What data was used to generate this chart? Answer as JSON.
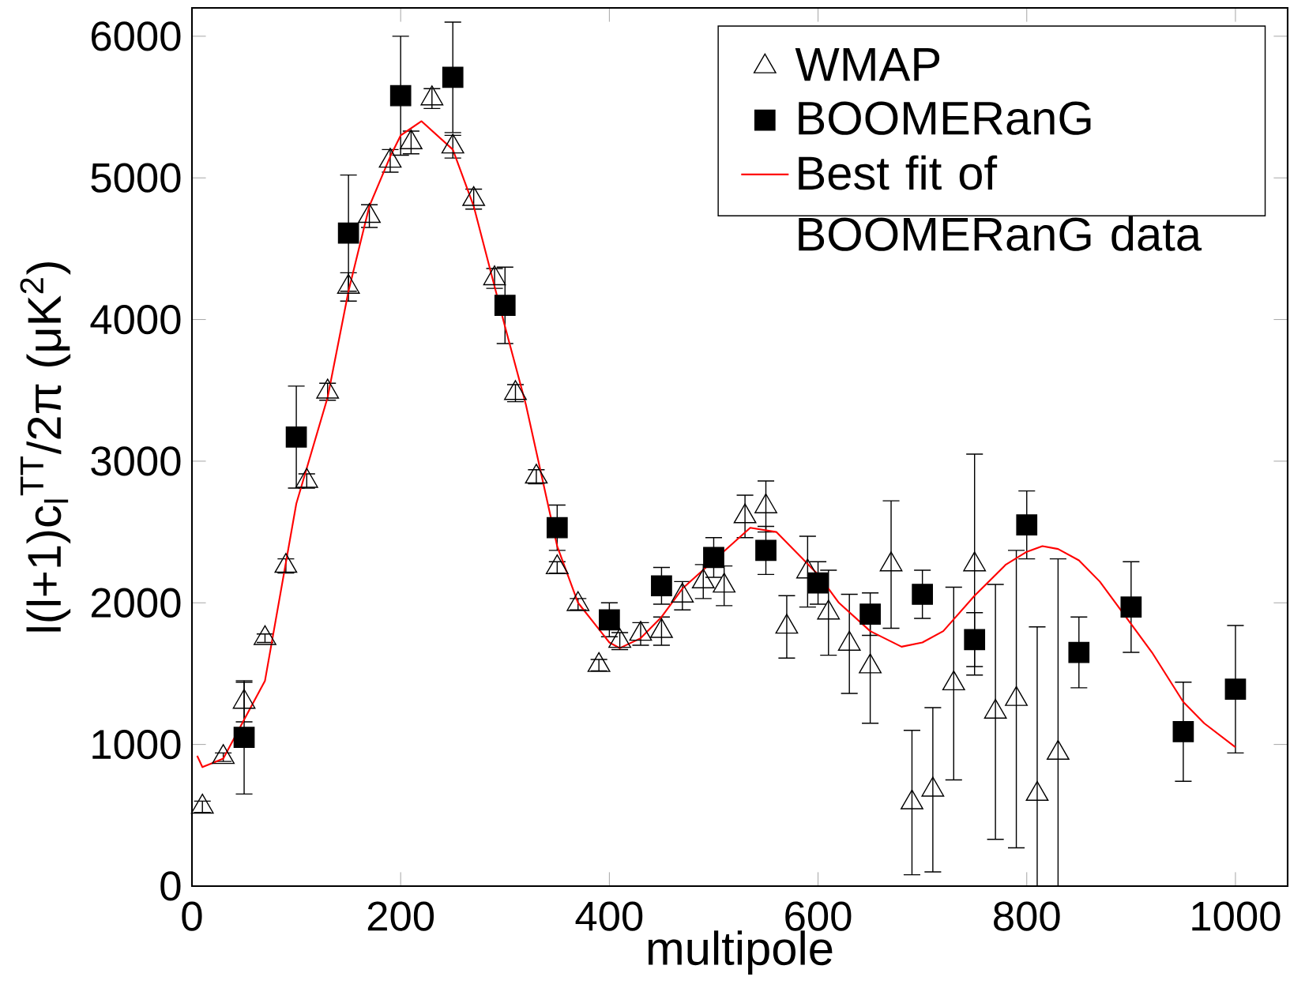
{
  "chart_data": {
    "type": "scatter",
    "xlabel": "multipole",
    "ylabel": "l(l+1)c$_{l}$$^{TT}$/2π (μK$^{2}$)",
    "xlim": [
      0,
      1050
    ],
    "ylim": [
      0,
      6200
    ],
    "xticks": [
      0,
      200,
      400,
      600,
      800,
      1000
    ],
    "yticks": [
      0,
      1000,
      2000,
      3000,
      4000,
      5000,
      6000
    ],
    "legend": "top right",
    "grid": false,
    "series": [
      {
        "name": "WMAP",
        "marker": "triangle",
        "color": "#000000",
        "x": [
          10,
          30,
          50,
          70,
          90,
          110,
          130,
          150,
          170,
          190,
          210,
          230,
          250,
          270,
          290,
          310,
          330,
          350,
          370,
          390,
          410,
          430,
          450,
          470,
          490,
          510,
          530,
          550,
          570,
          590,
          610,
          630,
          650,
          670,
          690,
          710,
          730,
          750,
          770,
          790,
          810,
          830
        ],
        "values": [
          560,
          910,
          1300,
          1750,
          2260,
          2860,
          3490,
          4230,
          4730,
          5120,
          5250,
          5560,
          5220,
          4850,
          4290,
          3480,
          2890,
          2250,
          1990,
          1560,
          1730,
          1780,
          1800,
          2050,
          2150,
          2120,
          2610,
          2680,
          1830,
          2220,
          1930,
          1710,
          1550,
          2270,
          590,
          680,
          1430,
          2270,
          1230,
          1320,
          650,
          940
        ],
        "errors": [
          40,
          30,
          140,
          30,
          50,
          50,
          60,
          100,
          80,
          80,
          80,
          70,
          80,
          70,
          70,
          60,
          50,
          40,
          40,
          40,
          60,
          80,
          100,
          100,
          120,
          140,
          150,
          180,
          220,
          250,
          300,
          350,
          400,
          450,
          510,
          580,
          680,
          780,
          900,
          1050,
          1180,
          1370
        ]
      },
      {
        "name": "BOOMERanG",
        "marker": "square",
        "color": "#000000",
        "x": [
          50,
          100,
          150,
          200,
          250,
          300,
          350,
          400,
          450,
          500,
          550,
          600,
          650,
          700,
          750,
          800,
          850,
          900,
          950,
          1000
        ],
        "values": [
          1050,
          3170,
          4610,
          5580,
          5710,
          4100,
          2530,
          1880,
          2120,
          2320,
          2370,
          2140,
          1920,
          2060,
          1740,
          2550,
          1650,
          1970,
          1090,
          1390
        ],
        "errors": [
          400,
          360,
          410,
          420,
          390,
          270,
          160,
          120,
          130,
          140,
          170,
          150,
          150,
          170,
          190,
          240,
          250,
          320,
          350,
          450
        ]
      },
      {
        "name": "Best fit of BOOMERanG data",
        "type": "line",
        "marker": "none",
        "line_style": "solid",
        "color": "#ff0000",
        "x": [
          5,
          10,
          20,
          30,
          70,
          100,
          130,
          150,
          170,
          190,
          200,
          220,
          250,
          270,
          300,
          320,
          350,
          370,
          400,
          410,
          430,
          450,
          470,
          535,
          560,
          600,
          620,
          650,
          680,
          700,
          720,
          750,
          780,
          800,
          815,
          830,
          850,
          870,
          900,
          920,
          950,
          970,
          1000
        ],
        "values": [
          920,
          840,
          870,
          900,
          1450,
          2700,
          3450,
          4200,
          4800,
          5150,
          5300,
          5400,
          5200,
          4800,
          3950,
          3400,
          2400,
          2000,
          1720,
          1680,
          1750,
          1900,
          2100,
          2530,
          2500,
          2200,
          2000,
          1800,
          1690,
          1720,
          1800,
          2050,
          2270,
          2360,
          2400,
          2380,
          2300,
          2150,
          1850,
          1650,
          1300,
          1150,
          980
        ]
      }
    ]
  }
}
